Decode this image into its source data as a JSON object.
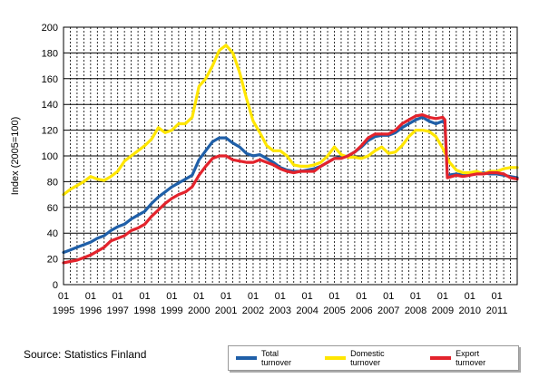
{
  "chart_data": {
    "type": "line",
    "ylabel": "Index (2005=100)",
    "ylim": [
      0,
      200
    ],
    "yticks": [
      0,
      20,
      40,
      60,
      80,
      100,
      120,
      140,
      160,
      180,
      200
    ],
    "xlim": [
      1995.0,
      2011.75
    ],
    "xticks": [
      {
        "month": "01",
        "year": "1995"
      },
      {
        "month": "01",
        "year": "1996"
      },
      {
        "month": "01",
        "year": "1997"
      },
      {
        "month": "01",
        "year": "1998"
      },
      {
        "month": "01",
        "year": "1999"
      },
      {
        "month": "01",
        "year": "2000"
      },
      {
        "month": "01",
        "year": "2001"
      },
      {
        "month": "01",
        "year": "2002"
      },
      {
        "month": "01",
        "year": "2003"
      },
      {
        "month": "01",
        "year": "2004"
      },
      {
        "month": "01",
        "year": "2005"
      },
      {
        "month": "01",
        "year": "2006"
      },
      {
        "month": "01",
        "year": "2007"
      },
      {
        "month": "01",
        "year": "2008"
      },
      {
        "month": "01",
        "year": "2009"
      },
      {
        "month": "01",
        "year": "2010"
      },
      {
        "month": "01",
        "year": "2011"
      }
    ],
    "grid": "vertical-dashed",
    "legend_position": "bottom-right",
    "series": [
      {
        "name": "Total turnover",
        "color": "#1f5fa8",
        "points": [
          [
            1995.0,
            25
          ],
          [
            1995.25,
            27
          ],
          [
            1995.5,
            29
          ],
          [
            1995.75,
            31
          ],
          [
            1996.0,
            33
          ],
          [
            1996.25,
            36
          ],
          [
            1996.5,
            38
          ],
          [
            1996.75,
            42
          ],
          [
            1997.0,
            45
          ],
          [
            1997.25,
            47
          ],
          [
            1997.5,
            51
          ],
          [
            1997.75,
            54
          ],
          [
            1998.0,
            57
          ],
          [
            1998.25,
            63
          ],
          [
            1998.5,
            68
          ],
          [
            1998.75,
            72
          ],
          [
            1999.0,
            76
          ],
          [
            1999.25,
            79
          ],
          [
            1999.5,
            82
          ],
          [
            1999.75,
            85
          ],
          [
            2000.0,
            97
          ],
          [
            2000.25,
            104
          ],
          [
            2000.5,
            111
          ],
          [
            2000.75,
            114
          ],
          [
            2001.0,
            114
          ],
          [
            2001.25,
            110
          ],
          [
            2001.5,
            107
          ],
          [
            2001.75,
            102
          ],
          [
            2002.0,
            100
          ],
          [
            2002.25,
            101
          ],
          [
            2002.5,
            98
          ],
          [
            2002.75,
            95
          ],
          [
            2003.0,
            91
          ],
          [
            2003.25,
            89
          ],
          [
            2003.5,
            88
          ],
          [
            2003.75,
            88
          ],
          [
            2004.0,
            89
          ],
          [
            2004.25,
            90
          ],
          [
            2004.5,
            92
          ],
          [
            2004.75,
            95
          ],
          [
            2005.0,
            98
          ],
          [
            2005.25,
            99
          ],
          [
            2005.5,
            100
          ],
          [
            2005.75,
            103
          ],
          [
            2006.0,
            107
          ],
          [
            2006.25,
            112
          ],
          [
            2006.5,
            115
          ],
          [
            2006.75,
            116
          ],
          [
            2007.0,
            116
          ],
          [
            2007.25,
            118
          ],
          [
            2007.5,
            122
          ],
          [
            2007.75,
            125
          ],
          [
            2008.0,
            128
          ],
          [
            2008.25,
            130
          ],
          [
            2008.5,
            127
          ],
          [
            2008.75,
            125
          ],
          [
            2009.0,
            127
          ],
          [
            2009.08,
            125
          ],
          [
            2009.17,
            85
          ],
          [
            2009.5,
            86
          ],
          [
            2009.75,
            85
          ],
          [
            2010.0,
            86
          ],
          [
            2010.25,
            86
          ],
          [
            2010.5,
            87
          ],
          [
            2010.75,
            86
          ],
          [
            2011.0,
            86
          ],
          [
            2011.25,
            85
          ],
          [
            2011.5,
            84
          ],
          [
            2011.75,
            83
          ]
        ]
      },
      {
        "name": "Domestic turnover",
        "color": "#ffe600",
        "points": [
          [
            1995.0,
            70
          ],
          [
            1995.25,
            74
          ],
          [
            1995.5,
            77
          ],
          [
            1995.75,
            80
          ],
          [
            1996.0,
            84
          ],
          [
            1996.25,
            82
          ],
          [
            1996.5,
            81
          ],
          [
            1996.75,
            84
          ],
          [
            1997.0,
            88
          ],
          [
            1997.25,
            96
          ],
          [
            1997.5,
            100
          ],
          [
            1997.75,
            104
          ],
          [
            1998.0,
            108
          ],
          [
            1998.25,
            113
          ],
          [
            1998.5,
            122
          ],
          [
            1998.75,
            118
          ],
          [
            1999.0,
            120
          ],
          [
            1999.25,
            125
          ],
          [
            1999.5,
            125
          ],
          [
            1999.75,
            130
          ],
          [
            2000.0,
            154
          ],
          [
            2000.25,
            160
          ],
          [
            2000.5,
            170
          ],
          [
            2000.75,
            182
          ],
          [
            2001.0,
            186
          ],
          [
            2001.25,
            180
          ],
          [
            2001.5,
            165
          ],
          [
            2001.75,
            145
          ],
          [
            2002.0,
            127
          ],
          [
            2002.25,
            118
          ],
          [
            2002.5,
            108
          ],
          [
            2002.75,
            104
          ],
          [
            2003.0,
            104
          ],
          [
            2003.25,
            100
          ],
          [
            2003.5,
            93
          ],
          [
            2003.75,
            92
          ],
          [
            2004.0,
            92
          ],
          [
            2004.25,
            93
          ],
          [
            2004.5,
            95
          ],
          [
            2004.75,
            100
          ],
          [
            2005.0,
            107
          ],
          [
            2005.25,
            101
          ],
          [
            2005.5,
            99
          ],
          [
            2005.75,
            99
          ],
          [
            2006.0,
            98
          ],
          [
            2006.25,
            100
          ],
          [
            2006.5,
            104
          ],
          [
            2006.75,
            107
          ],
          [
            2007.0,
            102
          ],
          [
            2007.25,
            103
          ],
          [
            2007.5,
            108
          ],
          [
            2007.75,
            115
          ],
          [
            2008.0,
            120
          ],
          [
            2008.25,
            120
          ],
          [
            2008.5,
            119
          ],
          [
            2008.75,
            115
          ],
          [
            2009.0,
            106
          ],
          [
            2009.25,
            95
          ],
          [
            2009.5,
            89
          ],
          [
            2009.75,
            87
          ],
          [
            2010.0,
            87
          ],
          [
            2010.25,
            88
          ],
          [
            2010.5,
            86
          ],
          [
            2010.75,
            88
          ],
          [
            2011.0,
            88
          ],
          [
            2011.25,
            90
          ],
          [
            2011.5,
            91
          ],
          [
            2011.75,
            91
          ]
        ]
      },
      {
        "name": "Export turnover",
        "color": "#e3232c",
        "points": [
          [
            1995.0,
            17
          ],
          [
            1995.25,
            18
          ],
          [
            1995.5,
            19
          ],
          [
            1995.75,
            21
          ],
          [
            1996.0,
            23
          ],
          [
            1996.25,
            26
          ],
          [
            1996.5,
            29
          ],
          [
            1996.75,
            34
          ],
          [
            1997.0,
            36
          ],
          [
            1997.25,
            38
          ],
          [
            1997.5,
            42
          ],
          [
            1997.75,
            44
          ],
          [
            1998.0,
            47
          ],
          [
            1998.25,
            53
          ],
          [
            1998.5,
            58
          ],
          [
            1998.75,
            63
          ],
          [
            1999.0,
            67
          ],
          [
            1999.25,
            70
          ],
          [
            1999.5,
            72
          ],
          [
            1999.75,
            76
          ],
          [
            2000.0,
            85
          ],
          [
            2000.25,
            92
          ],
          [
            2000.5,
            98
          ],
          [
            2000.75,
            100
          ],
          [
            2001.0,
            100
          ],
          [
            2001.25,
            97
          ],
          [
            2001.5,
            96
          ],
          [
            2001.75,
            95
          ],
          [
            2002.0,
            95
          ],
          [
            2002.25,
            97
          ],
          [
            2002.5,
            95
          ],
          [
            2002.75,
            93
          ],
          [
            2003.0,
            90
          ],
          [
            2003.25,
            88
          ],
          [
            2003.5,
            87
          ],
          [
            2003.75,
            88
          ],
          [
            2004.0,
            88
          ],
          [
            2004.25,
            88
          ],
          [
            2004.5,
            92
          ],
          [
            2004.75,
            95
          ],
          [
            2005.0,
            98
          ],
          [
            2005.25,
            98
          ],
          [
            2005.5,
            100
          ],
          [
            2005.75,
            103
          ],
          [
            2006.0,
            108
          ],
          [
            2006.25,
            114
          ],
          [
            2006.5,
            117
          ],
          [
            2006.75,
            117
          ],
          [
            2007.0,
            117
          ],
          [
            2007.25,
            120
          ],
          [
            2007.5,
            125
          ],
          [
            2007.75,
            128
          ],
          [
            2008.0,
            131
          ],
          [
            2008.25,
            132
          ],
          [
            2008.5,
            130
          ],
          [
            2008.75,
            129
          ],
          [
            2009.0,
            130
          ],
          [
            2009.08,
            128
          ],
          [
            2009.17,
            83
          ],
          [
            2009.5,
            85
          ],
          [
            2009.75,
            84
          ],
          [
            2010.0,
            85
          ],
          [
            2010.25,
            86
          ],
          [
            2010.5,
            86
          ],
          [
            2010.75,
            87
          ],
          [
            2011.0,
            87
          ],
          [
            2011.25,
            86
          ],
          [
            2011.5,
            83
          ],
          [
            2011.75,
            82
          ]
        ]
      }
    ]
  },
  "source": "Source: Statistics Finland"
}
